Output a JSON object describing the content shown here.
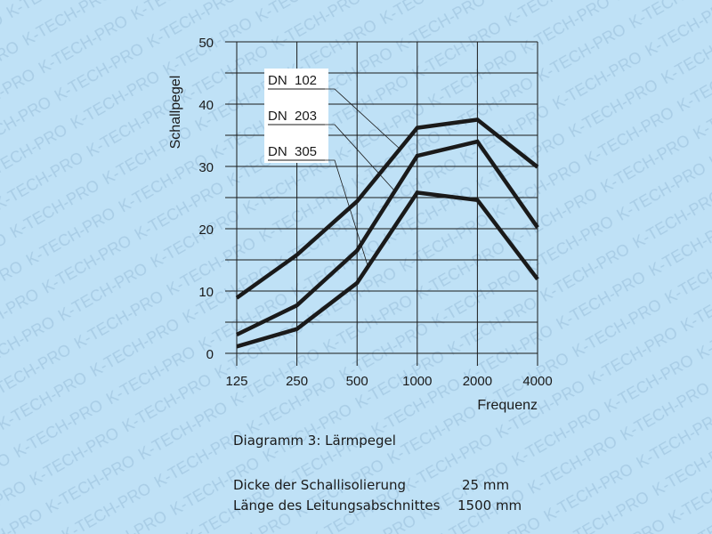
{
  "watermark": "K-TECH-PRO",
  "chart_data": {
    "type": "line",
    "title": "Diagramm 3: Lärmpegel",
    "xlabel": "Frequenz",
    "ylabel": "Schallpegel",
    "categories": [
      "125",
      "250",
      "500",
      "1000",
      "2000",
      "4000"
    ],
    "ylim": [
      0,
      50
    ],
    "yticks": [
      "0",
      "10",
      "20",
      "30",
      "40",
      "50"
    ],
    "grid": true,
    "legend_placement": "top-left (labels with leader lines)",
    "series": [
      {
        "name": "DN  102",
        "values": [
          8.9,
          15.8,
          24.4,
          36.2,
          37.5,
          29.9
        ]
      },
      {
        "name": "DN  203",
        "values": [
          3.0,
          7.7,
          16.5,
          31.7,
          34.0,
          20.2
        ]
      },
      {
        "name": "DN  305",
        "values": [
          1.1,
          3.9,
          11.3,
          25.8,
          24.6,
          11.9
        ]
      }
    ],
    "line_color": "#1a1a1a"
  },
  "notes": {
    "caption": "Diagramm 3: Lärmpegel",
    "thickness_label": "Dicke der Schallisolierung",
    "thickness_value": "25 mm",
    "length_label": "Länge des Leitungsabschnittes",
    "length_value": "1500 mm"
  }
}
